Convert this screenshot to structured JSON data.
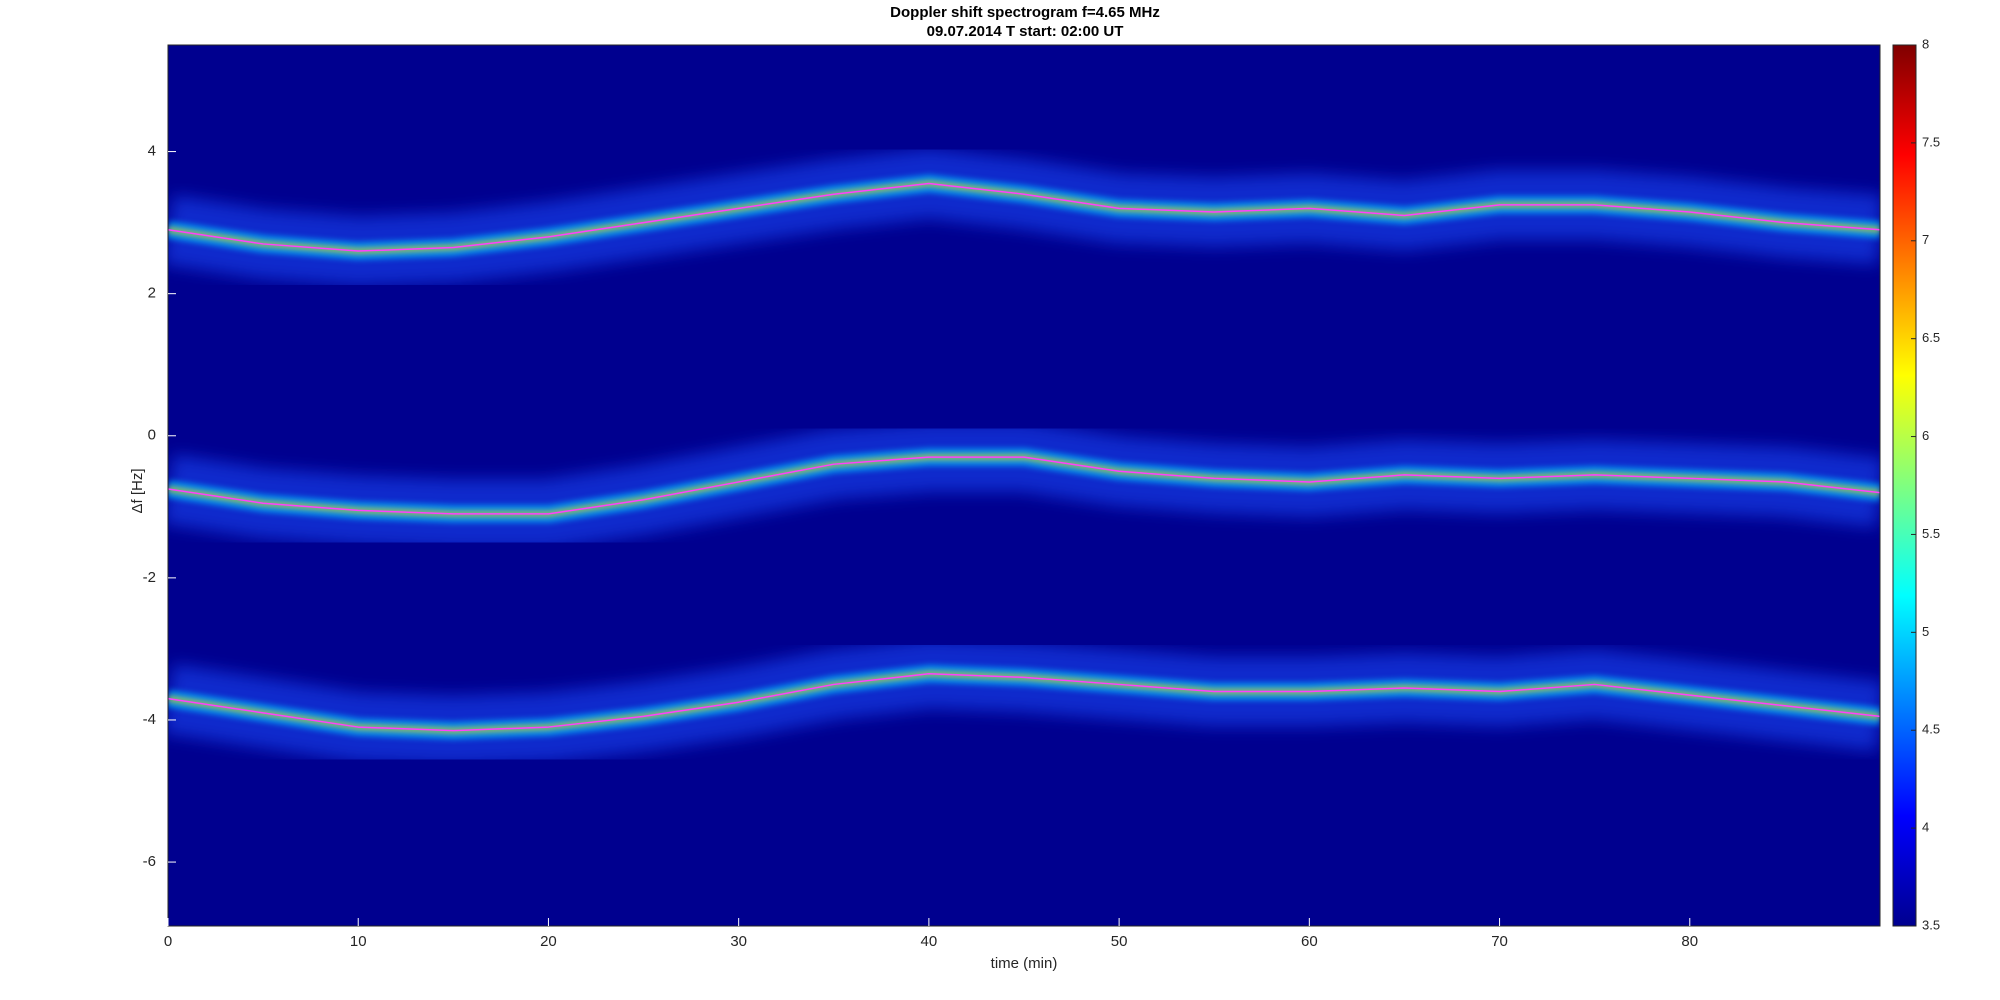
{
  "chart_data": {
    "type": "line",
    "title": "Doppler shift spectrogram f=4.65 MHz",
    "subtitle": "09.07.2014   T start: 02:00 UT",
    "x_label": "time (min)",
    "y_label": "Δf [Hz]",
    "x": [
      0,
      5,
      10,
      15,
      20,
      25,
      30,
      35,
      40,
      45,
      50,
      55,
      60,
      65,
      70,
      75,
      80,
      85,
      90
    ],
    "series": [
      {
        "color": "#ff40ff",
        "values": [
          2.9,
          2.7,
          2.6,
          2.65,
          2.8,
          3.0,
          3.2,
          3.4,
          3.55,
          3.4,
          3.2,
          3.15,
          3.2,
          3.1,
          3.25,
          3.25,
          3.15,
          3.0,
          2.9
        ]
      },
      {
        "color": "#ff40ff",
        "values": [
          -0.75,
          -0.95,
          -1.05,
          -1.1,
          -1.1,
          -0.9,
          -0.65,
          -0.4,
          -0.3,
          -0.3,
          -0.5,
          -0.6,
          -0.65,
          -0.55,
          -0.6,
          -0.55,
          -0.6,
          -0.65,
          -0.8
        ]
      },
      {
        "color": "#ff40ff",
        "values": [
          -3.7,
          -3.9,
          -4.1,
          -4.15,
          -4.1,
          -3.95,
          -3.75,
          -3.5,
          -3.35,
          -3.4,
          -3.5,
          -3.6,
          -3.6,
          -3.55,
          -3.6,
          -3.5,
          -3.65,
          -3.8,
          -3.95
        ]
      }
    ],
    "xlim": [
      0,
      90
    ],
    "xticks": [
      0,
      10,
      20,
      30,
      40,
      50,
      60,
      70,
      80
    ],
    "ylim": [
      -6.9,
      5.5
    ],
    "yticks": [
      -6,
      -4,
      -2,
      0,
      2,
      4
    ],
    "colormap": "jet",
    "background": "#00008f",
    "clim": [
      3.5,
      8
    ],
    "cticks": [
      3.5,
      4,
      4.5,
      5,
      5.5,
      6,
      6.5,
      7,
      7.5,
      8
    ]
  }
}
